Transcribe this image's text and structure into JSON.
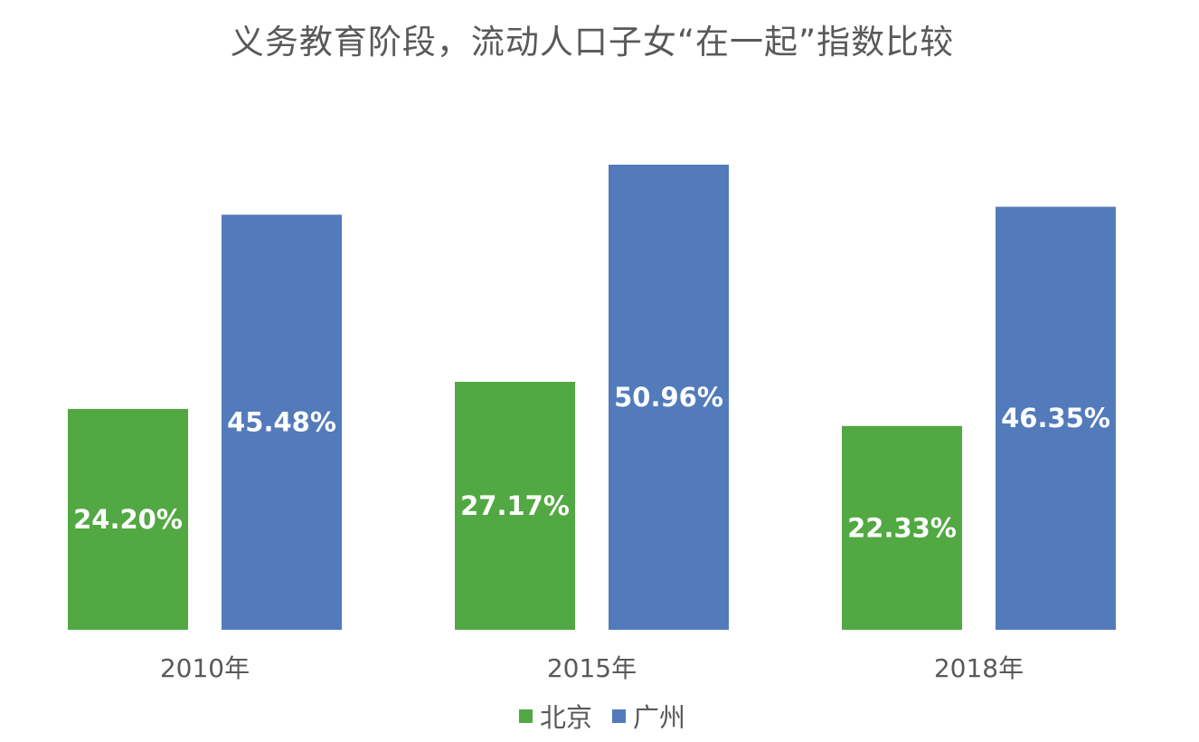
{
  "chart_data": {
    "type": "bar",
    "title": "义务教育阶段，流动人口子女“在一起”指数比较",
    "categories": [
      "2010年",
      "2015年",
      "2018年"
    ],
    "series": [
      {
        "name": "北京",
        "color": "#52a842",
        "values": [
          24.2,
          27.17,
          22.33
        ],
        "labels": [
          "24.20%",
          "27.17%",
          "22.33%"
        ]
      },
      {
        "name": "广州",
        "color": "#537bbb",
        "values": [
          45.48,
          50.96,
          46.35
        ],
        "labels": [
          "45.48%",
          "50.96%",
          "46.35%"
        ]
      }
    ],
    "xlabel": "",
    "ylabel": "",
    "ylim": [
      0,
      50.96
    ],
    "grid": false,
    "legend_position": "bottom"
  }
}
